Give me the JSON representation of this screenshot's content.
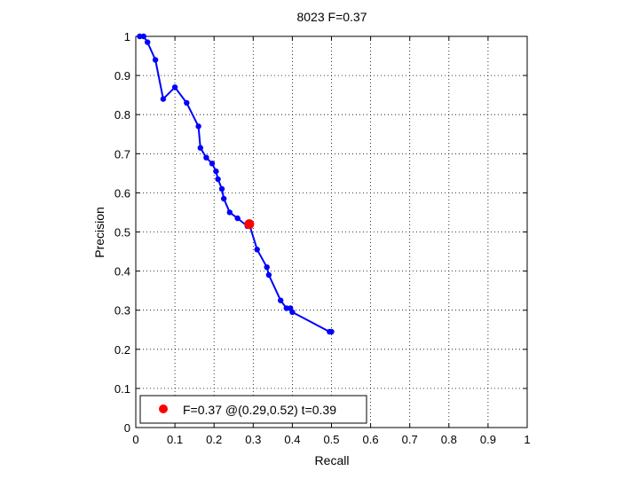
{
  "chart_data": {
    "type": "line",
    "title": "8023 F=0.37",
    "xlabel": "Recall",
    "ylabel": "Precision",
    "xlim": [
      0,
      1
    ],
    "ylim": [
      0,
      1
    ],
    "xticks": [
      "0",
      "0.1",
      "0.2",
      "0.3",
      "0.4",
      "0.5",
      "0.6",
      "0.7",
      "0.8",
      "0.9",
      "1"
    ],
    "yticks": [
      "0",
      "0.1",
      "0.2",
      "0.3",
      "0.4",
      "0.5",
      "0.6",
      "0.7",
      "0.8",
      "0.9",
      "1"
    ],
    "grid": true,
    "legend_position": "bottom-left",
    "colors": {
      "series": "#0000ff",
      "marker": "#ff0000"
    },
    "series": [
      {
        "x": [
          0.01,
          0.02,
          0.03,
          0.05,
          0.07,
          0.1,
          0.13,
          0.16,
          0.165,
          0.18,
          0.195,
          0.205,
          0.21,
          0.22,
          0.225,
          0.24,
          0.26,
          0.285,
          0.29,
          0.31,
          0.335,
          0.34,
          0.37,
          0.385,
          0.395,
          0.4,
          0.495,
          0.5
        ],
        "y": [
          1.0,
          1.0,
          0.985,
          0.94,
          0.84,
          0.87,
          0.83,
          0.77,
          0.715,
          0.69,
          0.675,
          0.655,
          0.635,
          0.61,
          0.585,
          0.55,
          0.535,
          0.515,
          0.52,
          0.455,
          0.41,
          0.39,
          0.325,
          0.305,
          0.305,
          0.295,
          0.245,
          0.245
        ]
      }
    ],
    "best_point": {
      "x": 0.29,
      "y": 0.52
    },
    "legend_label": "F=0.37 @(0.29,0.52) t=0.39"
  }
}
